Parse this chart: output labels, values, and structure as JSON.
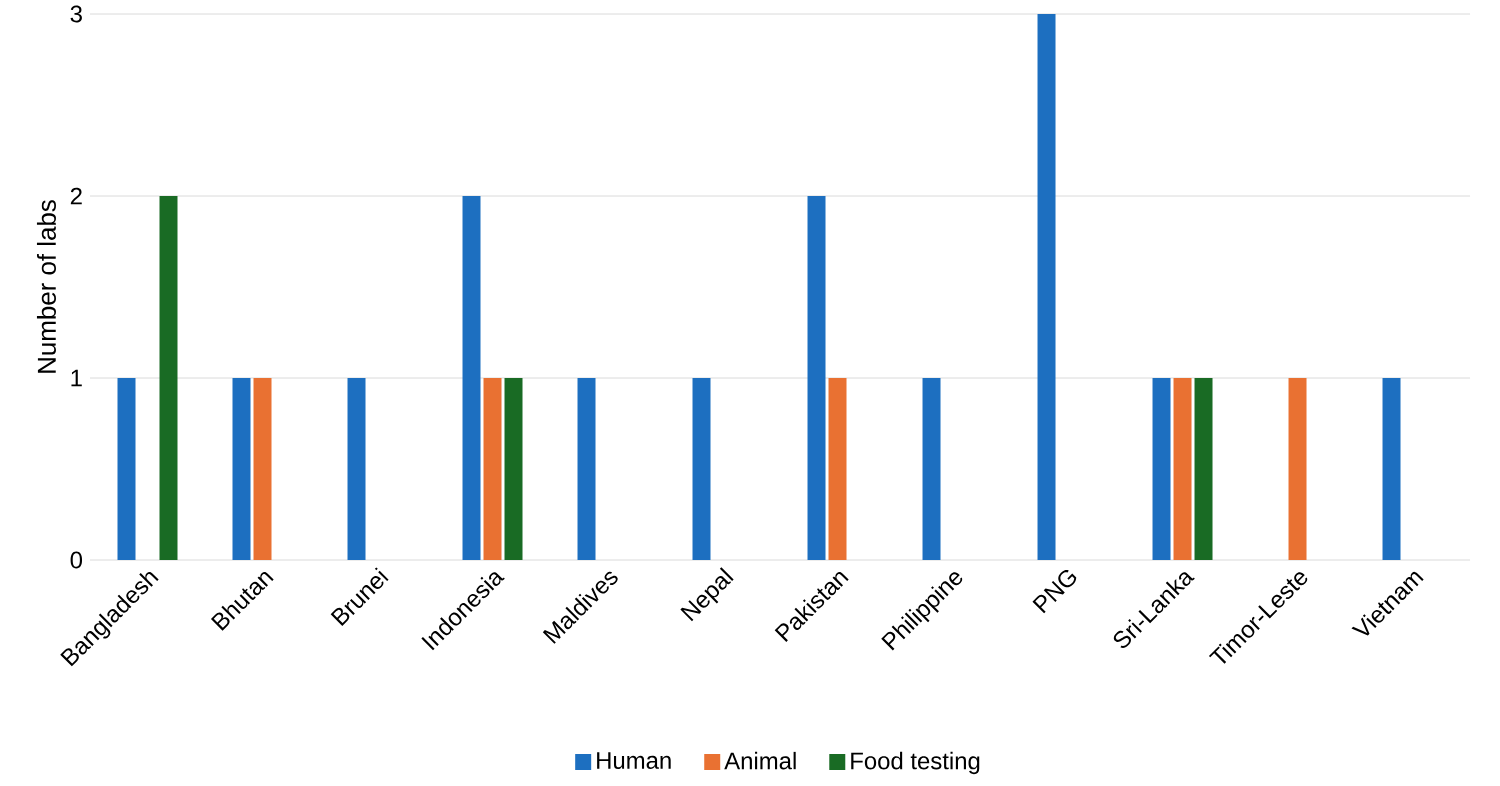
{
  "chart_data": {
    "type": "bar",
    "ylabel": "Number of labs",
    "categories": [
      "Bangladesh",
      "Bhutan",
      "Brunei",
      "Indonesia",
      "Maldives",
      "Nepal",
      "Pakistan",
      "Philippine",
      "PNG",
      "Sri-Lanka",
      "Timor-Leste",
      "Vietnam"
    ],
    "series": [
      {
        "name": "Human",
        "color": "#1d6fc0",
        "values": [
          1,
          1,
          1,
          2,
          1,
          1,
          2,
          1,
          3,
          1,
          0,
          1
        ]
      },
      {
        "name": "Animal",
        "color": "#e97132",
        "values": [
          0,
          1,
          0,
          1,
          0,
          0,
          1,
          0,
          0,
          1,
          1,
          0
        ]
      },
      {
        "name": "Food testing",
        "color": "#196b24",
        "values": [
          2,
          0,
          0,
          1,
          0,
          0,
          0,
          0,
          0,
          1,
          0,
          0
        ]
      }
    ],
    "ylim": [
      0,
      3
    ],
    "yticks": [
      0,
      1,
      2,
      3
    ],
    "grid": "y",
    "legend": "bottom"
  }
}
